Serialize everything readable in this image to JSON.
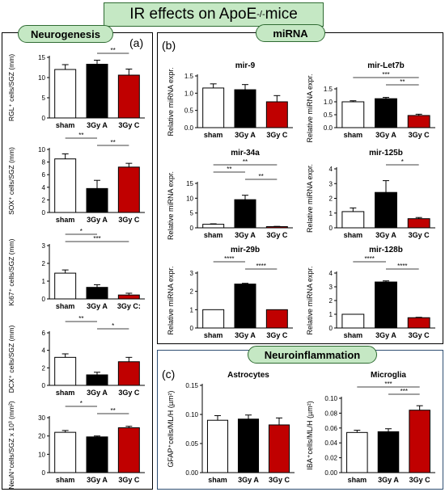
{
  "figure": {
    "title": "IR effects on ApoE",
    "title_superscript": "-/-",
    "title_suffix": " mice",
    "panel_a": {
      "letter": "(a)",
      "header": "Neurogenesis"
    },
    "panel_b": {
      "letter": "(b)",
      "header": "miRNA"
    },
    "panel_c": {
      "letter": "(c)",
      "header": "Neuroinflammation"
    }
  },
  "colors": {
    "sham": "#ffffff",
    "3gy_a": "#000000",
    "3gy_c": "#c00000",
    "pill": "#c5e8c4"
  },
  "chart_data": [
    {
      "id": "rgl",
      "panel": "a",
      "type": "bar",
      "title": "",
      "ylabel": "RGL⁺ cells/SGZ (mm)",
      "categories": [
        "sham",
        "3Gy A",
        "3Gy C"
      ],
      "values": [
        12,
        13.3,
        10.6
      ],
      "errors": [
        1.2,
        1.0,
        1.5
      ],
      "ylim": [
        0,
        15
      ],
      "yticks": [
        0,
        5,
        10,
        15
      ],
      "sig": [
        {
          "from": 1,
          "to": 2,
          "label": "**"
        }
      ]
    },
    {
      "id": "sox",
      "panel": "a",
      "type": "bar",
      "title": "",
      "ylabel": "SOX⁺ cells/SGZ (mm)",
      "categories": [
        "sham",
        "3Gy A",
        "3Gy C"
      ],
      "values": [
        8.5,
        3.8,
        7.2
      ],
      "errors": [
        0.8,
        1.3,
        0.6
      ],
      "ylim": [
        0,
        10
      ],
      "yticks": [
        0,
        2,
        4,
        6,
        8,
        10
      ],
      "sig": [
        {
          "from": 0,
          "to": 1,
          "label": "**"
        },
        {
          "from": 1,
          "to": 2,
          "label": "**"
        }
      ]
    },
    {
      "id": "ki67",
      "panel": "a",
      "type": "bar",
      "title": "",
      "ylabel": "Ki67⁺ cells/SGZ (mm)",
      "categories": [
        "sham",
        "3Gy A",
        "3Gy C:"
      ],
      "values": [
        1.45,
        0.65,
        0.22
      ],
      "errors": [
        0.18,
        0.15,
        0.1
      ],
      "ylim": [
        0,
        3
      ],
      "yticks": [
        0,
        1,
        2,
        3
      ],
      "sig": [
        {
          "from": 0,
          "to": 1,
          "label": "*"
        },
        {
          "from": 0,
          "to": 2,
          "label": "***"
        }
      ]
    },
    {
      "id": "dcx",
      "panel": "a",
      "type": "bar",
      "title": "",
      "ylabel": "DCX⁺ cells/SGZ (mm)",
      "categories": [
        "sham",
        "3Gy A",
        "3Gy C"
      ],
      "values": [
        3.2,
        1.2,
        2.7
      ],
      "errors": [
        0.4,
        0.3,
        0.5
      ],
      "ylim": [
        0,
        6
      ],
      "yticks": [
        0,
        2,
        4,
        6
      ],
      "sig": [
        {
          "from": 0,
          "to": 1,
          "label": "**"
        },
        {
          "from": 1,
          "to": 2,
          "label": "*"
        }
      ]
    },
    {
      "id": "neun",
      "panel": "a",
      "type": "bar",
      "title": "",
      "ylabel": "NeuN⁺cells/SGZ x 10³ (mm²)",
      "categories": [
        "sham",
        "3Gy A",
        "3Gy C"
      ],
      "values": [
        22,
        19.5,
        24.5
      ],
      "errors": [
        1.0,
        0.5,
        0.8
      ],
      "ylim": [
        0,
        30
      ],
      "yticks": [
        0,
        10,
        20,
        30
      ],
      "sig": [
        {
          "from": 0,
          "to": 1,
          "label": "*"
        },
        {
          "from": 1,
          "to": 2,
          "label": "**"
        }
      ]
    },
    {
      "id": "mir9",
      "panel": "b",
      "type": "bar",
      "title": "mir-9",
      "ylabel": "Relative miRNA expr.",
      "categories": [
        "sham",
        "3Gy A",
        "3Gy C"
      ],
      "values": [
        1.15,
        1.1,
        0.75
      ],
      "errors": [
        0.12,
        0.15,
        0.18
      ],
      "ylim": [
        0,
        1.5
      ],
      "yticks": [
        0.0,
        0.5,
        1.0,
        1.5
      ],
      "sig": []
    },
    {
      "id": "mirlet7b",
      "panel": "b",
      "type": "bar",
      "title": "mir-Let7b",
      "ylabel": "Relative miRNA expr.",
      "categories": [
        "sham",
        "3Gy A",
        "3Gy C"
      ],
      "values": [
        1.0,
        1.12,
        0.47
      ],
      "errors": [
        0.04,
        0.05,
        0.05
      ],
      "ylim": [
        0,
        1.5
      ],
      "yticks": [
        0.0,
        0.5,
        1.0,
        1.5
      ],
      "sig": [
        {
          "from": 0,
          "to": 2,
          "label": "***"
        },
        {
          "from": 1,
          "to": 2,
          "label": "**"
        }
      ]
    },
    {
      "id": "mir34a",
      "panel": "b",
      "type": "bar",
      "title": "mir-34a",
      "ylabel": "Relative miRNA expr.",
      "categories": [
        "sham",
        "3Gy A",
        "3Gy C"
      ],
      "values": [
        1.2,
        9.5,
        0.4
      ],
      "errors": [
        0.15,
        1.5,
        0.1
      ],
      "ylim": [
        0,
        15
      ],
      "yticks": [
        0,
        5,
        10,
        15
      ],
      "sig": [
        {
          "from": 0,
          "to": 2,
          "label": "**"
        },
        {
          "from": 0,
          "to": 1,
          "label": "**"
        },
        {
          "from": 1,
          "to": 2,
          "label": "**"
        }
      ]
    },
    {
      "id": "mir125b",
      "panel": "b",
      "type": "bar",
      "title": "mir-125b",
      "ylabel": "Relative miRNA expr.",
      "categories": [
        "sham",
        "3Gy A",
        "3Gy C"
      ],
      "values": [
        1.1,
        2.4,
        0.62
      ],
      "errors": [
        0.25,
        0.8,
        0.08
      ],
      "ylim": [
        0,
        4
      ],
      "yticks": [
        0,
        1,
        2,
        3,
        4
      ],
      "sig": [
        {
          "from": 1,
          "to": 2,
          "label": "*"
        }
      ]
    },
    {
      "id": "mir29b",
      "panel": "b",
      "type": "bar",
      "title": "mir-29b",
      "ylabel": "Relative miRNA expr.",
      "categories": [
        "sham",
        "3Gy A",
        "3Gy C"
      ],
      "values": [
        1.0,
        2.4,
        1.0
      ],
      "errors": [
        0.0,
        0.04,
        0.0
      ],
      "ylim": [
        0,
        3
      ],
      "yticks": [
        0,
        1,
        2,
        3
      ],
      "sig": [
        {
          "from": 0,
          "to": 1,
          "label": "****"
        },
        {
          "from": 1,
          "to": 2,
          "label": "****"
        }
      ]
    },
    {
      "id": "mir128b",
      "panel": "b",
      "type": "bar",
      "title": "mir-128b",
      "ylabel": "Relative miRNA expr.",
      "categories": [
        "sham",
        "3Gy A",
        "3Gy C"
      ],
      "values": [
        1.0,
        3.35,
        0.75
      ],
      "errors": [
        0.0,
        0.08,
        0.03
      ],
      "ylim": [
        0,
        4
      ],
      "yticks": [
        0,
        1,
        2,
        3,
        4
      ],
      "sig": [
        {
          "from": 0,
          "to": 1,
          "label": "****"
        },
        {
          "from": 1,
          "to": 2,
          "label": "****"
        }
      ]
    },
    {
      "id": "astro",
      "panel": "c",
      "type": "bar",
      "title": "Astrocytes",
      "ylabel": "GFAP⁺cells/ML/H (µm²)",
      "categories": [
        "sham",
        "3Gy A",
        "3Gy C"
      ],
      "values": [
        0.09,
        0.092,
        0.082
      ],
      "errors": [
        0.008,
        0.007,
        0.012
      ],
      "ylim": [
        0,
        0.15
      ],
      "yticks": [
        0.0,
        0.05,
        0.1,
        0.15
      ],
      "sig": []
    },
    {
      "id": "micro",
      "panel": "c",
      "type": "bar",
      "title": "Microglia",
      "ylabel": "IBA⁺cells/ML/H (µm²)",
      "categories": [
        "sham",
        "3Gy A",
        "3Gy C"
      ],
      "values": [
        0.054,
        0.055,
        0.084
      ],
      "errors": [
        0.003,
        0.004,
        0.006
      ],
      "ylim": [
        0,
        0.1
      ],
      "yticks": [
        0.0,
        0.02,
        0.04,
        0.06,
        0.08,
        0.1
      ],
      "sig": [
        {
          "from": 0,
          "to": 2,
          "label": "***"
        },
        {
          "from": 1,
          "to": 2,
          "label": "***"
        }
      ]
    }
  ]
}
